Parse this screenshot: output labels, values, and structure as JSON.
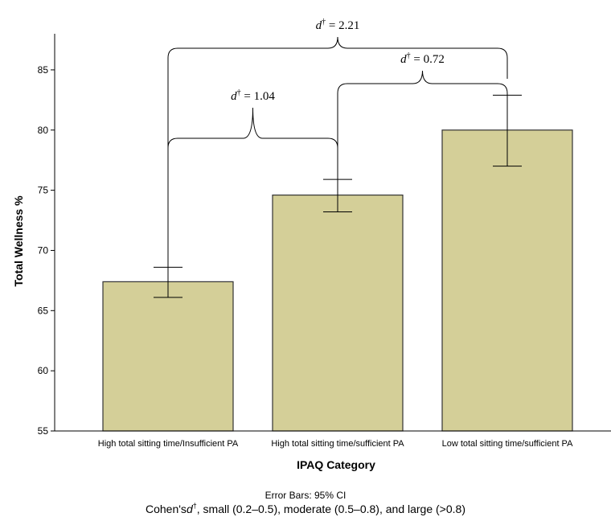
{
  "chart_data": {
    "type": "bar",
    "categories": [
      "High total sitting time/Insufficient PA",
      "High total sitting time/sufficient PA",
      "Low total sitting time/sufficient PA"
    ],
    "values": [
      67.4,
      74.6,
      80.0
    ],
    "ci_lower": [
      66.1,
      73.2,
      77.0
    ],
    "ci_upper": [
      68.6,
      75.9,
      82.9
    ],
    "ylim": [
      55,
      88
    ],
    "yticks": [
      55,
      60,
      65,
      70,
      75,
      80,
      85
    ],
    "xlabel": "IPAQ Category",
    "ylabel": "Total Wellness %",
    "bar_color": "#d4cf98",
    "bar_edge": "#333333",
    "grid": false,
    "annotations": [
      {
        "from": 0,
        "to": 2,
        "symbol": "d",
        "dagger": "†",
        "text": " = 2.21"
      },
      {
        "from": 1,
        "to": 2,
        "symbol": "d",
        "dagger": "†",
        "text": " = 0.72"
      },
      {
        "from": 0,
        "to": 1,
        "symbol": "d",
        "dagger": "†",
        "text": " = 1.04"
      }
    ],
    "footnote_error": "Error Bars: 95% CI",
    "footnote_cohen_prefix": "Cohen's",
    "footnote_cohen_symbol": "d",
    "footnote_cohen_dagger": "†",
    "footnote_cohen_suffix": ", small (0.2–0.5), moderate (0.5–0.8), and large (>0.8)"
  }
}
